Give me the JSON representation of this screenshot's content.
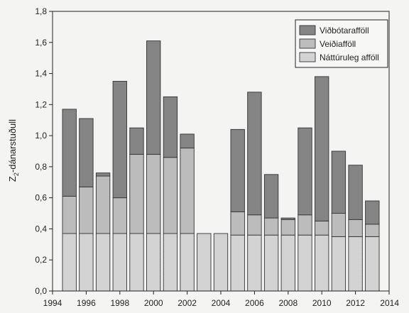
{
  "chart_data": {
    "type": "bar",
    "stacked": true,
    "title": "",
    "xlabel": "",
    "ylabel": "Z2-dánarstuðull",
    "ylabel_main": "Z",
    "ylabel_sub": "2",
    "ylabel_rest": "-dánarstuðull",
    "xlim": [
      1994,
      2014
    ],
    "ylim": [
      0,
      1.8
    ],
    "x_ticks": [
      1994,
      1996,
      1998,
      2000,
      2002,
      2004,
      2006,
      2008,
      2010,
      2012,
      2014
    ],
    "y_ticks": [
      "0,0",
      "0,2",
      "0,4",
      "0,6",
      "0,8",
      "1,0",
      "1,2",
      "1,4",
      "1,6",
      "1,8"
    ],
    "y_tick_values": [
      0,
      0.2,
      0.4,
      0.6,
      0.8,
      1.0,
      1.2,
      1.4,
      1.6,
      1.8
    ],
    "grid": false,
    "legend_position": "top-right",
    "years": [
      1995,
      1996,
      1997,
      1998,
      1999,
      2000,
      2001,
      2002,
      2003,
      2004,
      2005,
      2006,
      2007,
      2008,
      2009,
      2010,
      2011,
      2012,
      2013
    ],
    "series": [
      {
        "name": "Náttúruleg afföll",
        "color": "#d4d4d4",
        "values": [
          0.37,
          0.37,
          0.37,
          0.37,
          0.37,
          0.37,
          0.37,
          0.37,
          0.37,
          0.37,
          0.36,
          0.36,
          0.36,
          0.36,
          0.36,
          0.36,
          0.35,
          0.35,
          0.35
        ]
      },
      {
        "name": "Veiðiafföll",
        "color": "#bdbdbd",
        "values": [
          0.24,
          0.3,
          0.37,
          0.23,
          0.51,
          0.51,
          0.49,
          0.55,
          0.0,
          0.0,
          0.15,
          0.13,
          0.11,
          0.1,
          0.13,
          0.09,
          0.15,
          0.11,
          0.08
        ]
      },
      {
        "name": "Viðbótarafföll",
        "color": "#858585",
        "values": [
          0.56,
          0.44,
          0.02,
          0.75,
          0.17,
          0.73,
          0.39,
          0.09,
          0.0,
          0.0,
          0.53,
          0.79,
          0.28,
          0.01,
          0.56,
          0.93,
          0.4,
          0.35,
          0.15
        ]
      }
    ]
  }
}
